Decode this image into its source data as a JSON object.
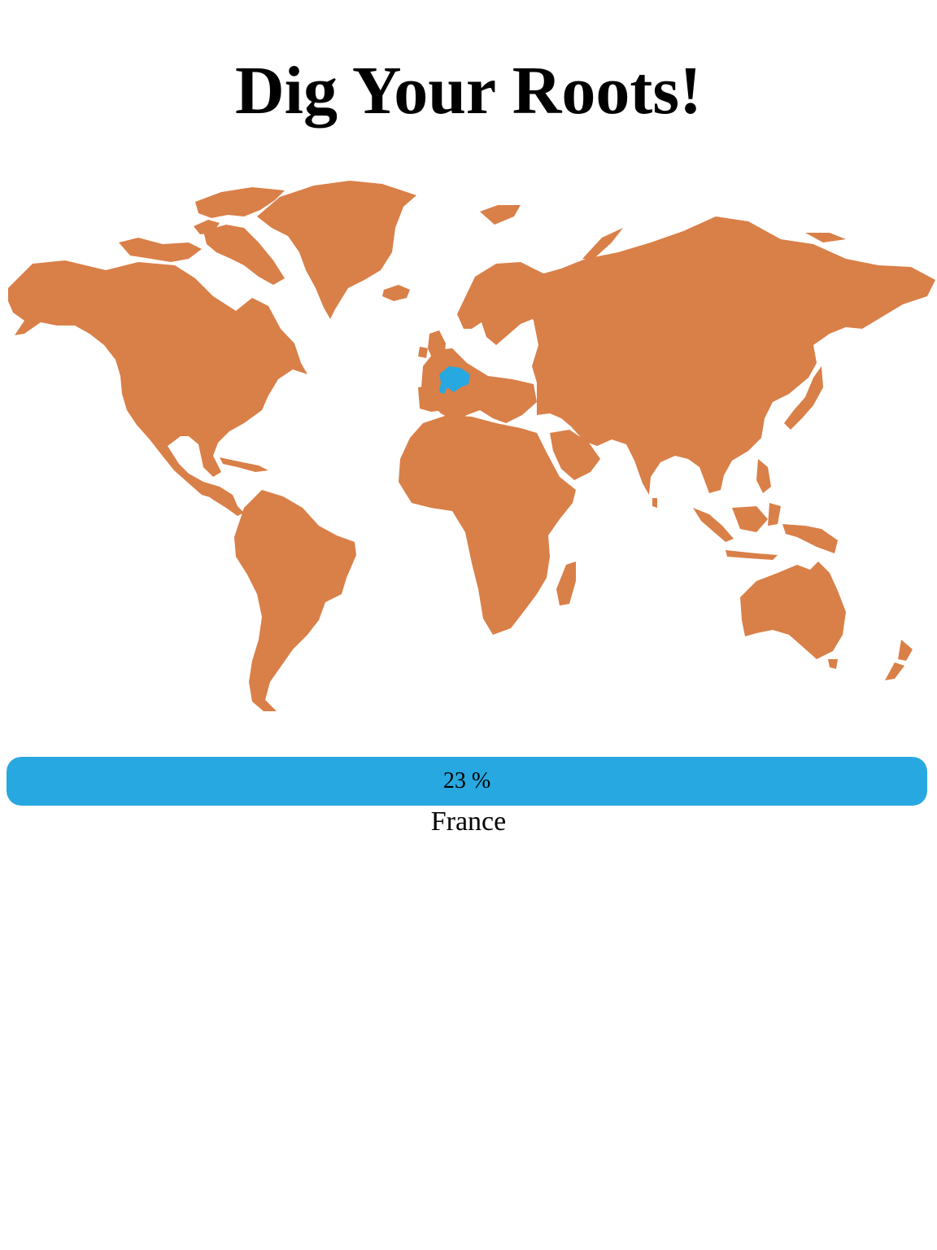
{
  "page": {
    "title": "Dig Your Roots!"
  },
  "map": {
    "land_color": "#d97f48",
    "highlight_color": "#27a8e0",
    "highlighted_country": "France"
  },
  "result": {
    "percent_value": 23,
    "percent_label": "23 %",
    "country": "France",
    "bar_color": "#27a8e0"
  }
}
